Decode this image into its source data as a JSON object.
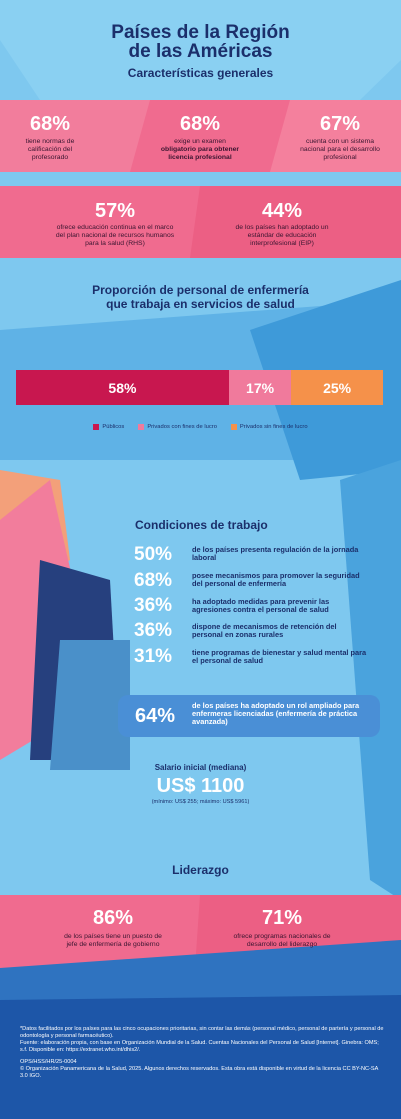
{
  "header": {
    "title_line1": "Países de la Región",
    "title_line2": "de las Américas",
    "subtitle": "Características generales"
  },
  "stats_row1": [
    {
      "value": "68%",
      "text": "tiene normas de calificación del profesorado"
    },
    {
      "value": "68%",
      "text": "exige un examen",
      "text_bold": "obligatorio para obtener licencia profesional"
    },
    {
      "value": "67%",
      "text": "cuenta con un sistema nacional para el desarrollo profesional"
    }
  ],
  "stats_row2": [
    {
      "value": "57%",
      "text": "ofrece educación continua en el marco del plan nacional de recursos humanos para la salud (RHS)"
    },
    {
      "value": "44%",
      "text": "de los países han adoptado un estándar de educación interprofesional (EIP)"
    }
  ],
  "proportion": {
    "type": "stacked-bar",
    "title": "Proporción de personal de enfermería que trabaja en servicios de salud",
    "series": [
      {
        "name": "Públicos",
        "color": "#c8174f",
        "values": [
          58
        ],
        "value_labels": [
          "58%"
        ]
      },
      {
        "name": "Privados con fines de lucro",
        "color": "#f07a9c",
        "values": [
          17
        ],
        "value_labels": [
          "17%"
        ]
      },
      {
        "name": "Privados sin fines de lucro",
        "color": "#f5914a",
        "values": [
          25
        ],
        "value_labels": [
          "25%"
        ]
      }
    ]
  },
  "working": {
    "title": "Condiciones de trabajo",
    "items": [
      {
        "value": "50%",
        "text": "de los países presenta regulación de la jornada laboral"
      },
      {
        "value": "68%",
        "text": "posee mecanismos para promover la seguridad del personal de enfermería"
      },
      {
        "value": "36%",
        "text": "ha adoptado medidas para prevenir las agresiones contra el personal de salud"
      },
      {
        "value": "36%",
        "text": "dispone de mecanismos de retención del personal en zonas rurales"
      },
      {
        "value": "31%",
        "text": "tiene programas de bienestar y salud mental para el personal de salud"
      }
    ],
    "highlight": {
      "value": "64%",
      "text": "de los países ha adoptado un rol ampliado para enfermeras licenciadas (enfermería de práctica avanzada)"
    },
    "salary": {
      "label": "Salario inicial (mediana)",
      "value": "US$ 1100",
      "note": "(mínimo: US$ 255; máximo: US$ 5961)"
    }
  },
  "leadership": {
    "title": "Liderazgo",
    "items": [
      {
        "value": "86%",
        "text": "de los países tiene un puesto de jefe de enfermería de gobierno"
      },
      {
        "value": "71%",
        "text": "ofrece programas nacionales de desarrollo del liderazgo"
      }
    ]
  },
  "footer": {
    "note": "*Datos facilitados por los países para las cinco ocupaciones prioritarias, sin contar las demás (personal médico, personal de partería y personal de odontología y personal farmacéutico).",
    "source": "Fuente: elaboración propia, con base en Organización Mundial de la Salud. Cuentas Nacionales del Personal de Salud [Internet]. Ginebra: OMS; s.f. Disponible en: https://extranet.who.int/dhis2/.",
    "code": "OPS/HSS/HR/25-0004",
    "copyright": "© Organización Panamericana de la Salud, 2025. Algunos derechos reservados. Esta obra está disponible en virtud de la licencia CC BY-NC-SA 3.0 IGO."
  }
}
